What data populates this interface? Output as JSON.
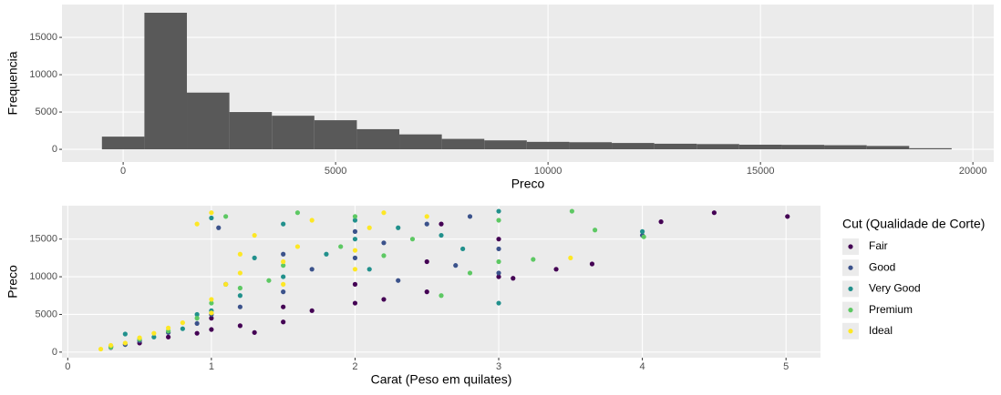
{
  "chart_data": [
    {
      "type": "histogram",
      "xlabel": "Preco",
      "ylabel": "Frequencia",
      "color": "#595959",
      "grid": true,
      "bins": [
        -500,
        500,
        1500,
        2500,
        3500,
        4500,
        5500,
        6500,
        7500,
        8500,
        9500,
        10500,
        11500,
        12500,
        13500,
        14500,
        15500,
        16500,
        17500,
        18500,
        19500
      ],
      "values": [
        1700,
        18300,
        7600,
        5000,
        4500,
        3900,
        2700,
        2000,
        1400,
        1200,
        1000,
        950,
        850,
        750,
        700,
        620,
        600,
        550,
        450,
        150
      ],
      "xlim": [
        -1440,
        20490
      ],
      "ylim": [
        -1700,
        19400
      ],
      "xticks": [
        0,
        5000,
        10000,
        15000,
        20000
      ],
      "yticks": [
        0,
        5000,
        10000,
        15000
      ]
    },
    {
      "type": "scatter",
      "xlabel": "Carat (Peso em quilates)",
      "ylabel": "Preco",
      "legend_title": "Cut (Qualidade de Corte)",
      "legend": "right",
      "grid": true,
      "xlim": [
        -0.04,
        5.24
      ],
      "ylim": [
        -740,
        19430
      ],
      "xticks": [
        0,
        1,
        2,
        3,
        4,
        5
      ],
      "yticks": [
        0,
        5000,
        10000,
        15000
      ],
      "series": [
        {
          "name": "Fair",
          "color": "#440154",
          "x": [
            0.3,
            0.5,
            0.7,
            0.9,
            1.0,
            1.0,
            1.2,
            1.5,
            1.5,
            1.7,
            2.0,
            2.0,
            2.2,
            2.5,
            2.5,
            3.0,
            3.0,
            3.1,
            3.65,
            4.13,
            4.5,
            5.01,
            3.4,
            1.3,
            2.6
          ],
          "values": [
            800,
            1200,
            2000,
            2500,
            3000,
            4500,
            3500,
            4000,
            6000,
            5500,
            6500,
            9000,
            7000,
            8000,
            12000,
            10000,
            15000,
            9800,
            11700,
            17300,
            18500,
            18000,
            11000,
            2600,
            17000
          ]
        },
        {
          "name": "Good",
          "color": "#3B528B",
          "x": [
            0.3,
            0.5,
            0.7,
            0.9,
            1.0,
            1.05,
            1.2,
            1.5,
            1.5,
            1.7,
            2.0,
            2.0,
            2.2,
            2.5,
            2.8,
            3.0,
            3.0,
            4.0,
            2.7,
            0.4,
            1.1,
            2.3
          ],
          "values": [
            600,
            1500,
            2600,
            3800,
            5000,
            16500,
            6000,
            8000,
            13000,
            11000,
            12500,
            16000,
            14500,
            17000,
            18000,
            13700,
            10500,
            15500,
            11500,
            1000,
            9000,
            9500
          ]
        },
        {
          "name": "Very Good",
          "color": "#21908C",
          "x": [
            0.3,
            0.4,
            0.6,
            0.8,
            1.0,
            1.0,
            1.2,
            1.5,
            1.5,
            1.8,
            2.0,
            2.0,
            2.3,
            2.6,
            3.0,
            3.0,
            4.0,
            2.1,
            1.3,
            0.9,
            2.75
          ],
          "values": [
            700,
            2400,
            2000,
            3100,
            5500,
            17800,
            7500,
            10000,
            17000,
            13000,
            15000,
            17500,
            16500,
            15500,
            6500,
            18700,
            16000,
            11000,
            12500,
            5000,
            13700
          ]
        },
        {
          "name": "Premium",
          "color": "#5DC863",
          "x": [
            0.3,
            0.5,
            0.7,
            0.9,
            1.0,
            1.1,
            1.2,
            1.5,
            1.6,
            1.9,
            2.0,
            2.4,
            2.6,
            3.0,
            3.0,
            3.24,
            3.51,
            3.67,
            4.01,
            2.8,
            1.4,
            2.2
          ],
          "values": [
            650,
            1700,
            2800,
            4500,
            6500,
            18000,
            8500,
            11500,
            18500,
            14000,
            18000,
            15000,
            7500,
            12000,
            17500,
            12300,
            18700,
            16200,
            15300,
            10500,
            9500,
            12800
          ]
        },
        {
          "name": "Ideal",
          "color": "#FDE725",
          "x": [
            0.23,
            0.3,
            0.4,
            0.5,
            0.6,
            0.7,
            0.8,
            1.0,
            1.0,
            1.1,
            1.2,
            1.2,
            1.3,
            1.5,
            1.5,
            1.6,
            1.7,
            1.0,
            2.0,
            2.1,
            2.2,
            3.5,
            2.5,
            2.0,
            0.9
          ],
          "values": [
            400,
            900,
            1200,
            1900,
            2500,
            3200,
            3900,
            5200,
            7000,
            9000,
            10500,
            13000,
            15500,
            9000,
            12000,
            14000,
            17500,
            18500,
            13500,
            16500,
            18500,
            12500,
            18000,
            11000,
            17000
          ]
        }
      ]
    }
  ]
}
